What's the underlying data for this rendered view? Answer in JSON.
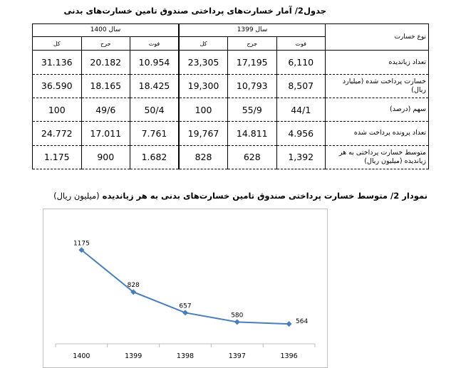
{
  "table": {
    "title": "جدول2/ آمار خسارت‌های پرداختی صندوق تامین خسارت‌های بدنی",
    "header_type": "نوع خسارت",
    "years": [
      "سال 1399",
      "سال 1400"
    ],
    "subheaders": [
      "فوت",
      "جرح",
      "کل"
    ],
    "rows": [
      {
        "label": "تعداد زیاندیده",
        "y1399": [
          "6,110",
          "17,195",
          "23,305"
        ],
        "y1400": [
          "10.954",
          "20.182",
          "31.136"
        ]
      },
      {
        "label": "خسارت پرداخت شده (میلیارد ریال)",
        "y1399": [
          "8,507",
          "10,793",
          "19,300"
        ],
        "y1400": [
          "18.425",
          "18.165",
          "36.590"
        ]
      },
      {
        "label": "سهم (درصد)",
        "y1399": [
          "44/1",
          "55/9",
          "100"
        ],
        "y1400": [
          "50/4",
          "49/6",
          "100"
        ]
      },
      {
        "label": "تعداد پرونده پرداخت شده",
        "y1399": [
          "4.956",
          "14.811",
          "19,767"
        ],
        "y1400": [
          "7.761",
          "17.011",
          "24.772"
        ]
      },
      {
        "label": "متوسط خسارت پرداختی به هر زیاندیده (میلیون ریال)",
        "y1399": [
          "1,392",
          "628",
          "828"
        ],
        "y1400": [
          "1.682",
          "900",
          "1.175"
        ]
      }
    ]
  },
  "chart_title": "نمودار 2/ متوسط خسارت پرداختی صندوق تامین خسارت‌های بدنی به هر زیاندیده",
  "chart_unit": "(میلیون ریال)",
  "chart_data": {
    "type": "line",
    "categories": [
      "1400",
      "1399",
      "1398",
      "1397",
      "1396"
    ],
    "values": [
      1175,
      828,
      657,
      580,
      564
    ],
    "data_labels": [
      "1175",
      "828",
      "657",
      "580",
      "564"
    ],
    "ylim": [
      400,
      1400
    ],
    "grid": false,
    "line_color": "#4a7ebb",
    "marker_color": "#4a7ebb"
  }
}
